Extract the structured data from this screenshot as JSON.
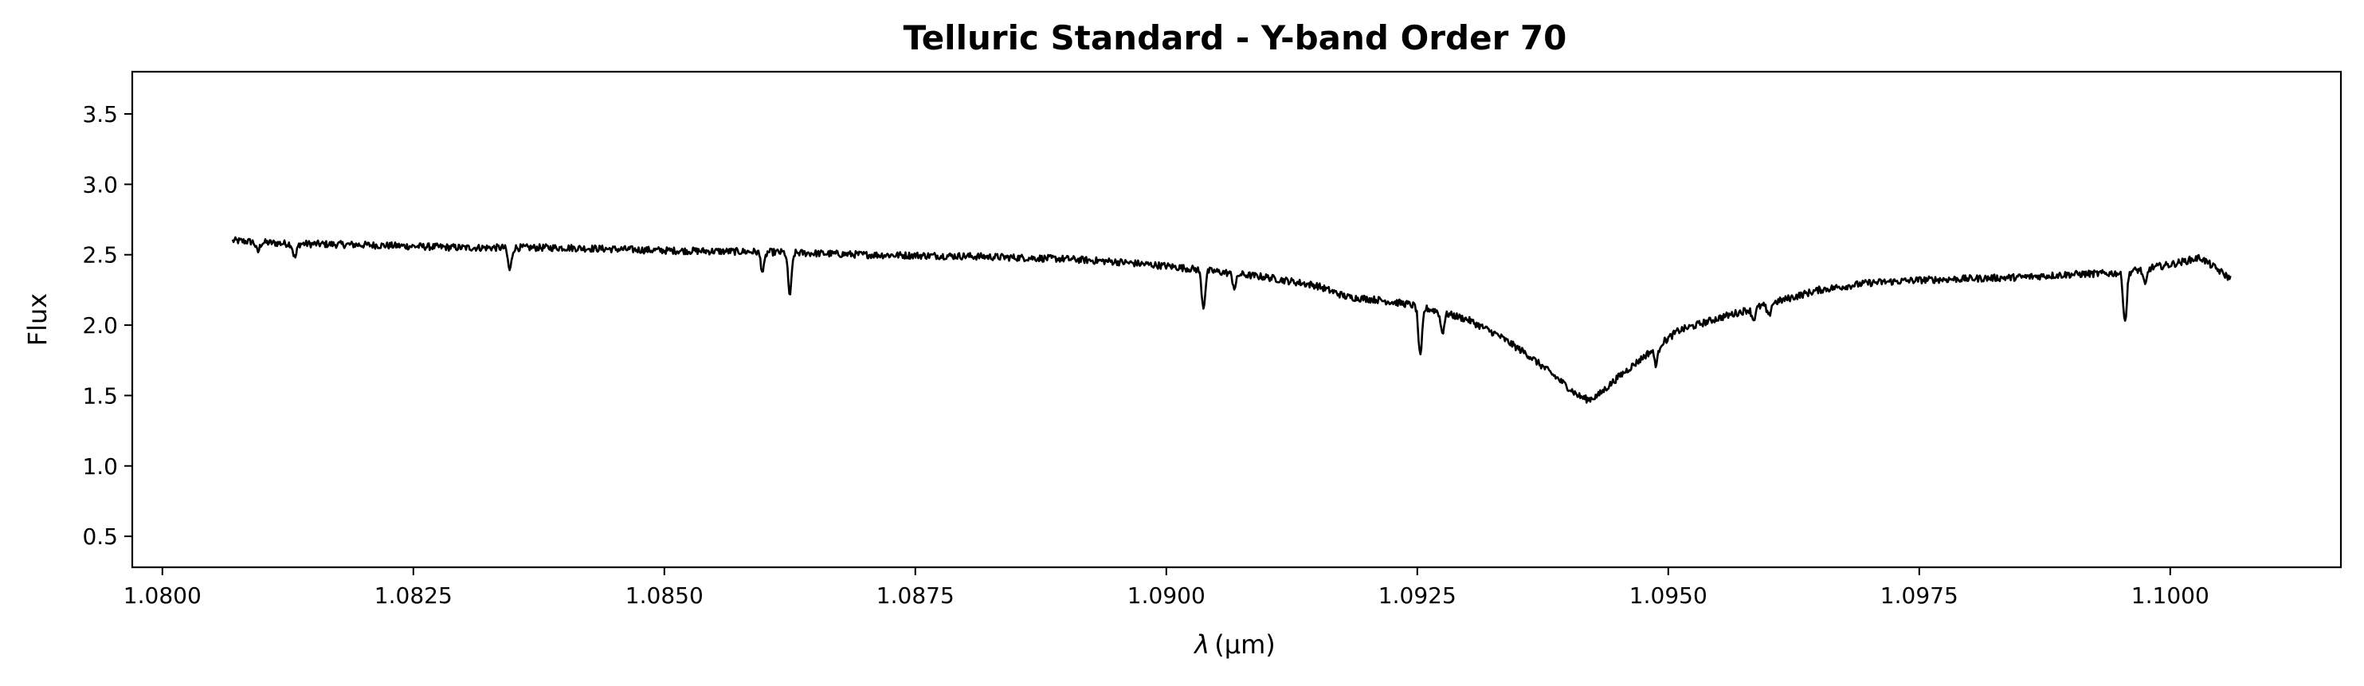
{
  "chart_data": {
    "type": "line",
    "title": "Telluric Standard - Y-band Order 70",
    "xlabel_symbol": "λ",
    "xlabel_unit": "(μm)",
    "ylabel": "Flux",
    "xlim": [
      1.0797,
      1.1017
    ],
    "ylim": [
      0.28,
      3.8
    ],
    "xticks": [
      1.08,
      1.0825,
      1.085,
      1.0875,
      1.09,
      1.0925,
      1.095,
      1.0975,
      1.1
    ],
    "xtick_labels": [
      "1.0800",
      "1.0825",
      "1.0850",
      "1.0875",
      "1.0900",
      "1.0925",
      "1.0950",
      "1.0975",
      "1.1000"
    ],
    "yticks": [
      0.5,
      1.0,
      1.5,
      2.0,
      2.5,
      3.0,
      3.5
    ],
    "ytick_labels": [
      "0.5",
      "1.0",
      "1.5",
      "2.0",
      "2.5",
      "3.0",
      "3.5"
    ],
    "grid": false,
    "line_color": "#000000",
    "series": [
      {
        "x": [
          1.0807,
          1.0812,
          1.082,
          1.083,
          1.084,
          1.085,
          1.086,
          1.087,
          1.088,
          1.089,
          1.0895,
          1.09,
          1.0905,
          1.091,
          1.0915,
          1.0918,
          1.0921,
          1.0924,
          1.0927,
          1.093,
          1.0933,
          1.0936,
          1.0939,
          1.0941,
          1.0942,
          1.0943,
          1.0945,
          1.0948,
          1.0951,
          1.0955,
          1.096,
          1.0965,
          1.097,
          1.0975,
          1.098,
          1.0985,
          1.099,
          1.0995,
          1.1,
          1.1003,
          1.1006
        ],
        "y": [
          2.6,
          2.58,
          2.57,
          2.55,
          2.55,
          2.53,
          2.52,
          2.5,
          2.49,
          2.47,
          2.45,
          2.42,
          2.38,
          2.34,
          2.28,
          2.2,
          2.18,
          2.15,
          2.1,
          2.04,
          1.93,
          1.79,
          1.62,
          1.5,
          1.47,
          1.5,
          1.63,
          1.8,
          1.96,
          2.05,
          2.15,
          2.25,
          2.3,
          2.32,
          2.33,
          2.34,
          2.36,
          2.37,
          2.43,
          2.48,
          2.33
        ]
      }
    ],
    "absorption_lines": [
      {
        "x": 1.08095,
        "depth": 0.07
      },
      {
        "x": 1.08132,
        "depth": 0.1
      },
      {
        "x": 1.08346,
        "depth": 0.16
      },
      {
        "x": 1.08598,
        "depth": 0.14
      },
      {
        "x": 1.08625,
        "depth": 0.3
      },
      {
        "x": 1.09037,
        "depth": 0.26
      },
      {
        "x": 1.09068,
        "depth": 0.1
      },
      {
        "x": 1.09253,
        "depth": 0.36
      },
      {
        "x": 1.09275,
        "depth": 0.14
      },
      {
        "x": 1.09488,
        "depth": 0.12
      },
      {
        "x": 1.09585,
        "depth": 0.08
      },
      {
        "x": 1.096,
        "depth": 0.09
      },
      {
        "x": 1.09955,
        "depth": 0.35
      },
      {
        "x": 1.09975,
        "depth": 0.12
      }
    ]
  }
}
